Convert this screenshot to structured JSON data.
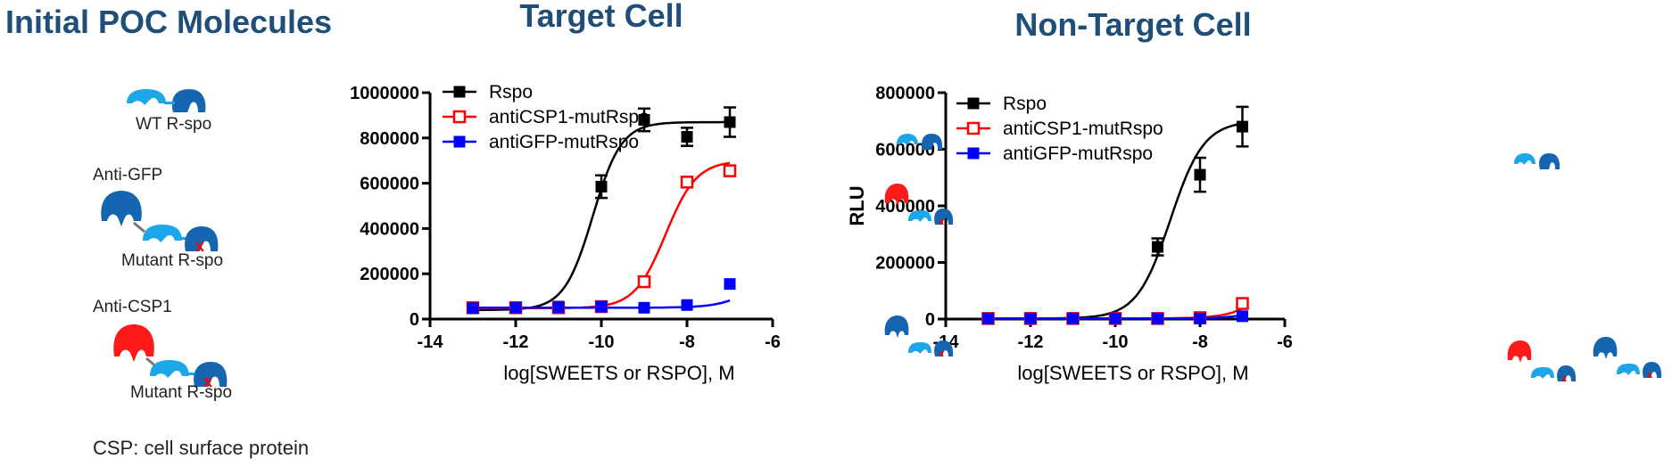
{
  "left_panel": {
    "title": "Initial POC Molecules",
    "wt_label": "WT R-spo",
    "anti_gfp_label": "Anti-GFP",
    "mutant_label_1": "Mutant R-spo",
    "anti_csp1_label": "Anti-CSP1",
    "mutant_label_2": "Mutant R-spo",
    "footnote": "CSP: cell surface protein"
  },
  "colors": {
    "title": "#1f4e79",
    "rspo": "#000000",
    "anti_csp1": "#ff0000",
    "anti_gfp": "#0000ff",
    "light_blue": "#1ea7e8",
    "dark_blue": "#1565b0",
    "red": "#ff1a1a"
  },
  "chart_data": [
    {
      "type": "scatter",
      "title": "Target Cell",
      "xlabel": "log[SWEETS or RSPO], M",
      "ylabel": "",
      "xlim": [
        -14,
        -6
      ],
      "ylim": [
        0,
        1000000
      ],
      "xticks": [
        -14,
        -12,
        -10,
        -8,
        -6
      ],
      "xtick_labels": [
        "-14",
        "-12",
        "-10",
        "-8",
        "-6"
      ],
      "yticks": [
        0,
        200000,
        400000,
        600000,
        800000,
        1000000
      ],
      "ytick_labels": [
        "0",
        "200000",
        "400000",
        "600000",
        "800000",
        "1000000"
      ],
      "legend": [
        "Rspo",
        "antiCSP1-mutRspo",
        "antiGFP-mutRspo"
      ],
      "series": [
        {
          "name": "Rspo",
          "marker": "filled-square",
          "x": [
            -13,
            -12,
            -11,
            -10,
            -9,
            -8,
            -7
          ],
          "values": [
            50000,
            50000,
            55000,
            585000,
            880000,
            805000,
            870000
          ],
          "errors": [
            0,
            0,
            0,
            50000,
            50000,
            40000,
            65000
          ],
          "fit": {
            "bottom": 40000,
            "top": 870000,
            "logec50": -10.2,
            "hill": 1.3
          }
        },
        {
          "name": "antiCSP1-mutRspo",
          "marker": "open-square",
          "x": [
            -13,
            -12,
            -11,
            -10,
            -9,
            -8,
            -7
          ],
          "values": [
            50000,
            50000,
            50000,
            55000,
            165000,
            605000,
            655000
          ],
          "errors": [
            0,
            0,
            0,
            0,
            0,
            0,
            0
          ],
          "fit": {
            "bottom": 48000,
            "top": 700000,
            "logec50": -8.5,
            "hill": 1.2
          }
        },
        {
          "name": "antiGFP-mutRspo",
          "marker": "filled-square",
          "x": [
            -13,
            -12,
            -11,
            -10,
            -9,
            -8,
            -7
          ],
          "values": [
            48000,
            50000,
            52000,
            55000,
            50000,
            62000,
            155000
          ],
          "errors": [
            0,
            0,
            0,
            0,
            0,
            0,
            0
          ],
          "fit": {
            "bottom": 50000,
            "top": 600000,
            "logec50": -5.8,
            "hill": 1.0
          }
        }
      ]
    },
    {
      "type": "scatter",
      "title": "Non-Target Cell",
      "xlabel": "log[SWEETS or RSPO], M",
      "ylabel": "RLU",
      "xlim": [
        -14,
        -6
      ],
      "ylim": [
        0,
        800000
      ],
      "xticks": [
        -14,
        -12,
        -10,
        -8,
        -6
      ],
      "xtick_labels": [
        "-14",
        "-12",
        "-10",
        "-8",
        "-6"
      ],
      "yticks": [
        0,
        200000,
        400000,
        600000,
        800000
      ],
      "ytick_labels": [
        "0",
        "200000",
        "400000",
        "600000",
        "800000"
      ],
      "legend": [
        "Rspo",
        "antiCSP1-mutRspo",
        "antiGFP-mutRspo"
      ],
      "series": [
        {
          "name": "Rspo",
          "marker": "filled-square",
          "x": [
            -13,
            -12,
            -11,
            -10,
            -9,
            -8,
            -7
          ],
          "values": [
            2000,
            2000,
            2000,
            3000,
            255000,
            510000,
            680000
          ],
          "errors": [
            0,
            0,
            0,
            0,
            30000,
            60000,
            70000
          ],
          "fit": {
            "bottom": 2000,
            "top": 700000,
            "logec50": -8.7,
            "hill": 1.1
          }
        },
        {
          "name": "antiCSP1-mutRspo",
          "marker": "open-square",
          "x": [
            -13,
            -12,
            -11,
            -10,
            -9,
            -8,
            -7
          ],
          "values": [
            2000,
            2000,
            2000,
            2000,
            2000,
            5000,
            55000
          ],
          "errors": [
            0,
            0,
            0,
            0,
            0,
            0,
            0
          ],
          "fit": {
            "bottom": 2000,
            "top": 600000,
            "logec50": -5.8,
            "hill": 1.0
          }
        },
        {
          "name": "antiGFP-mutRspo",
          "marker": "filled-square",
          "x": [
            -13,
            -12,
            -11,
            -10,
            -9,
            -8,
            -7
          ],
          "values": [
            2000,
            2000,
            2000,
            2000,
            2000,
            2000,
            10000
          ],
          "errors": [
            0,
            0,
            0,
            0,
            0,
            0,
            0
          ],
          "fit": {
            "bottom": 2000,
            "top": 400000,
            "logec50": -5.5,
            "hill": 1.0
          }
        }
      ]
    }
  ]
}
